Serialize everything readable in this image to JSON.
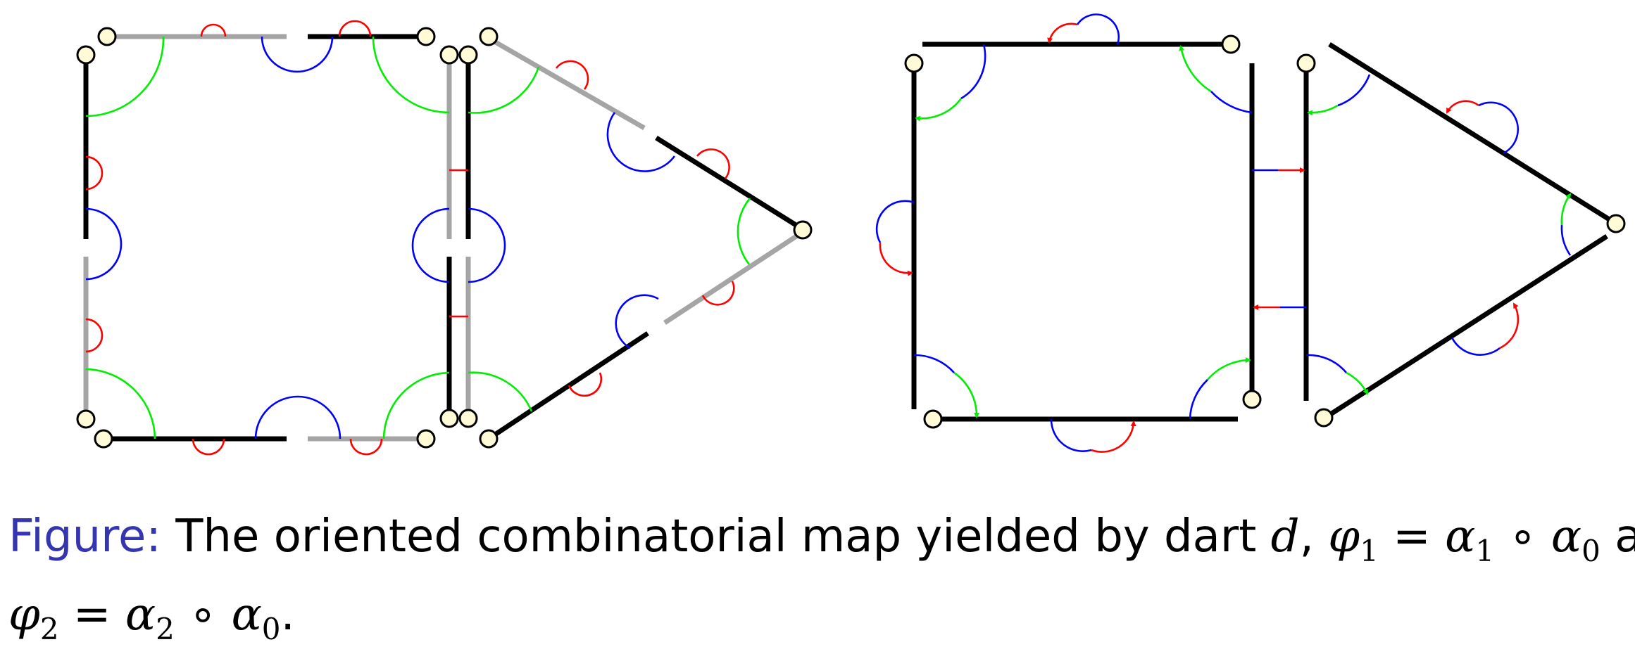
{
  "caption": {
    "label": "Figure:",
    "text": "The oriented combinatorial map yielded by dart",
    "dart": "d",
    "phi1": "φ",
    "phi1_sub": "1",
    "eq1": "=",
    "alpha1": "α",
    "alpha1_sub": "1",
    "comp": "∘",
    "alpha0": "α",
    "alpha0_sub": "0",
    "and": "and",
    "phi2": "φ",
    "phi2_sub": "2",
    "alpha2": "α",
    "alpha2_sub": "2",
    "end": "."
  },
  "colors": {
    "dart_black": "#000000",
    "dart_gray": "#a5a5a5",
    "alpha0_red": "#ff0000",
    "alpha1_blue": "#0000ff",
    "alpha2_green": "#00ee00",
    "vertex_fill": "#fffbd6"
  },
  "panels": [
    "darts-with-involutions",
    "oriented-map"
  ]
}
